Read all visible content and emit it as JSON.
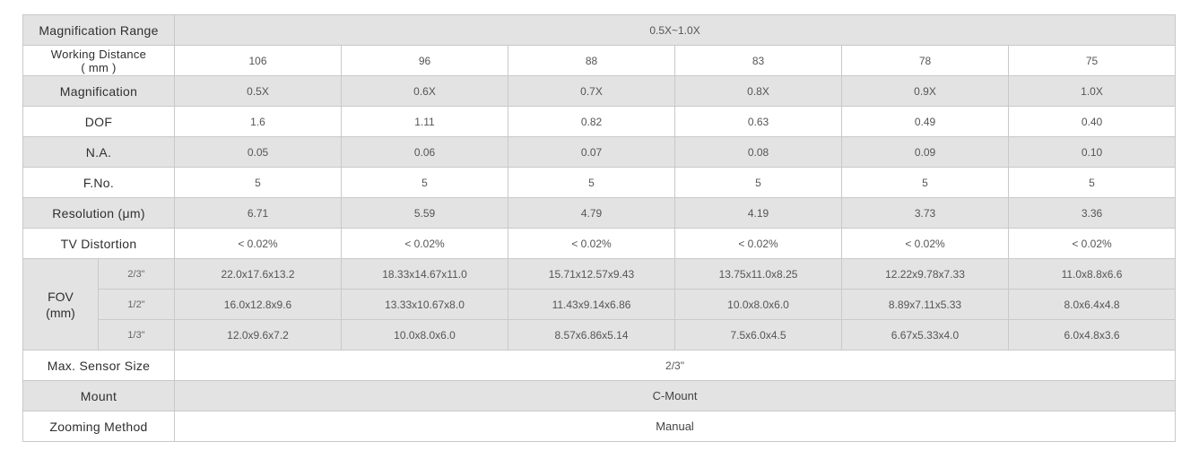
{
  "table": {
    "magnification_range": {
      "label": "Magnification Range",
      "value": "0.5X~1.0X"
    },
    "working_distance": {
      "label_line1": "Working Distance",
      "label_line2": "( mm )",
      "values": [
        "106",
        "96",
        "88",
        "83",
        "78",
        "75"
      ]
    },
    "magnification": {
      "label": "Magnification",
      "values": [
        "0.5X",
        "0.6X",
        "0.7X",
        "0.8X",
        "0.9X",
        "1.0X"
      ]
    },
    "dof": {
      "label": "DOF",
      "values": [
        "1.6",
        "1.11",
        "0.82",
        "0.63",
        "0.49",
        "0.40"
      ]
    },
    "na": {
      "label": "N.A.",
      "values": [
        "0.05",
        "0.06",
        "0.07",
        "0.08",
        "0.09",
        "0.10"
      ]
    },
    "fno": {
      "label": "F.No.",
      "values": [
        "5",
        "5",
        "5",
        "5",
        "5",
        "5"
      ]
    },
    "resolution": {
      "label": "Resolution (μm)",
      "values": [
        "6.71",
        "5.59",
        "4.79",
        "4.19",
        "3.73",
        "3.36"
      ]
    },
    "tv_distortion": {
      "label": "TV Distortion",
      "values": [
        "< 0.02%",
        "< 0.02%",
        "< 0.02%",
        "< 0.02%",
        "< 0.02%",
        "< 0.02%"
      ]
    },
    "fov": {
      "label_line1": "FOV",
      "label_line2": "(mm)",
      "rows": [
        {
          "sensor": "2/3\"",
          "values": [
            "22.0x17.6x13.2",
            "18.33x14.67x11.0",
            "15.71x12.57x9.43",
            "13.75x11.0x8.25",
            "12.22x9.78x7.33",
            "11.0x8.8x6.6"
          ]
        },
        {
          "sensor": "1/2\"",
          "values": [
            "16.0x12.8x9.6",
            "13.33x10.67x8.0",
            "11.43x9.14x6.86",
            "10.0x8.0x6.0",
            "8.89x7.11x5.33",
            "8.0x6.4x4.8"
          ]
        },
        {
          "sensor": "1/3\"",
          "values": [
            "12.0x9.6x7.2",
            "10.0x8.0x6.0",
            "8.57x6.86x5.14",
            "7.5x6.0x4.5",
            "6.67x5.33x4.0",
            "6.0x4.8x3.6"
          ]
        }
      ]
    },
    "max_sensor_size": {
      "label": "Max. Sensor Size",
      "value": "2/3\""
    },
    "mount": {
      "label": "Mount",
      "value": "C-Mount"
    },
    "zooming_method": {
      "label": "Zooming Method",
      "value": "Manual"
    }
  }
}
